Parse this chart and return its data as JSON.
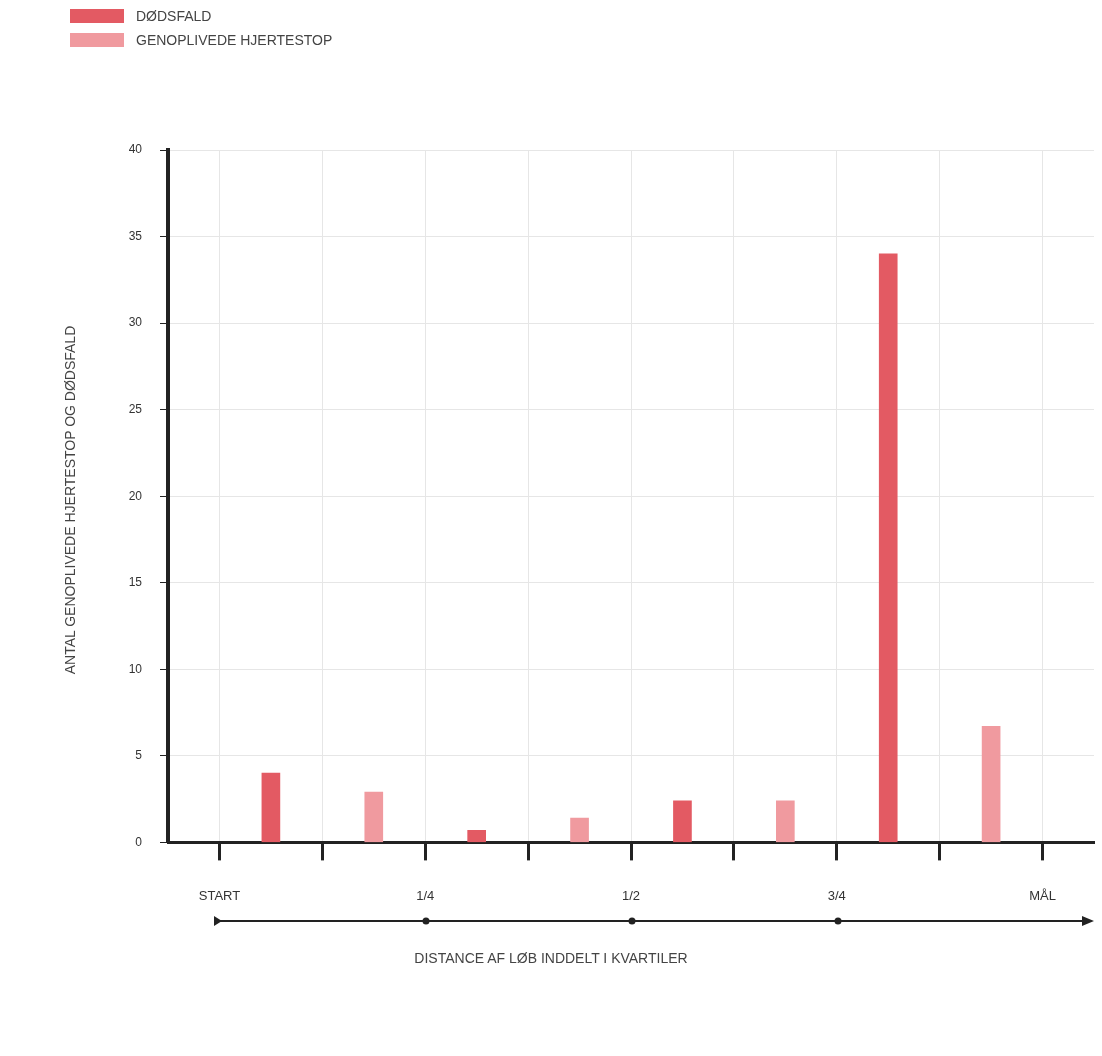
{
  "chart_data": {
    "type": "bar",
    "xlabel": "DISTANCE AF LØB INDDELT I KVARTILER",
    "ylabel": "ANTAL GENOPLIVEDE HJERTESTOP OG DØDSFALD",
    "series": [
      {
        "name": "DØDSFALD",
        "color": "#e35a63",
        "x": [
          0.0625,
          0.3125,
          0.5625,
          0.8125
        ],
        "values": [
          4,
          0.7,
          2.4,
          34
        ]
      },
      {
        "name": "GENOPLIVEDE HJERTESTOP",
        "color": "#f09a9f",
        "x": [
          0.1875,
          0.4375,
          0.6875,
          0.9375
        ],
        "values": [
          2.9,
          1.4,
          2.4,
          6.7
        ]
      }
    ],
    "xlim": [
      -0.0625,
      1.0625
    ],
    "xticks": [
      {
        "value": 0,
        "label": "START"
      },
      {
        "value": 0.125,
        "label": null
      },
      {
        "value": 0.25,
        "label": "1/4"
      },
      {
        "value": 0.375,
        "label": null
      },
      {
        "value": 0.5,
        "label": "1/2"
      },
      {
        "value": 0.625,
        "label": null
      },
      {
        "value": 0.75,
        "label": "3/4"
      },
      {
        "value": 0.875,
        "label": null
      },
      {
        "value": 1,
        "label": "MÅL"
      }
    ],
    "ylim": [
      0,
      40
    ],
    "yticks": [
      0,
      5,
      10,
      15,
      20,
      25,
      30,
      35,
      40
    ],
    "grid": true,
    "legend": "top left"
  }
}
